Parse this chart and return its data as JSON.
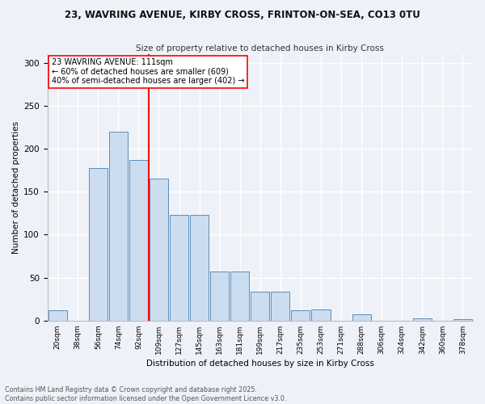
{
  "title_line1": "23, WAVRING AVENUE, KIRBY CROSS, FRINTON-ON-SEA, CO13 0TU",
  "title_line2": "Size of property relative to detached houses in Kirby Cross",
  "xlabel": "Distribution of detached houses by size in Kirby Cross",
  "ylabel": "Number of detached properties",
  "bin_labels": [
    "20sqm",
    "38sqm",
    "56sqm",
    "74sqm",
    "92sqm",
    "109sqm",
    "127sqm",
    "145sqm",
    "163sqm",
    "181sqm",
    "199sqm",
    "217sqm",
    "235sqm",
    "253sqm",
    "271sqm",
    "288sqm",
    "306sqm",
    "324sqm",
    "342sqm",
    "360sqm",
    "378sqm"
  ],
  "bar_values": [
    12,
    0,
    178,
    220,
    187,
    165,
    123,
    123,
    57,
    57,
    34,
    34,
    12,
    13,
    0,
    7,
    0,
    0,
    3,
    0,
    2
  ],
  "bar_color": "#ccddf0",
  "bar_edge_color": "#5b8db8",
  "vline_x": 5,
  "vline_color": "red",
  "annotation_title": "23 WAVRING AVENUE: 111sqm",
  "annotation_line2": "← 60% of detached houses are smaller (609)",
  "annotation_line3": "40% of semi-detached houses are larger (402) →",
  "annotation_box_color": "white",
  "annotation_box_edge": "red",
  "ylim": [
    0,
    310
  ],
  "yticks": [
    0,
    50,
    100,
    150,
    200,
    250,
    300
  ],
  "footer_line1": "Contains HM Land Registry data © Crown copyright and database right 2025.",
  "footer_line2": "Contains public sector information licensed under the Open Government Licence v3.0.",
  "bg_color": "#eef2f8",
  "grid_color": "#ffffff",
  "num_bins": 21
}
